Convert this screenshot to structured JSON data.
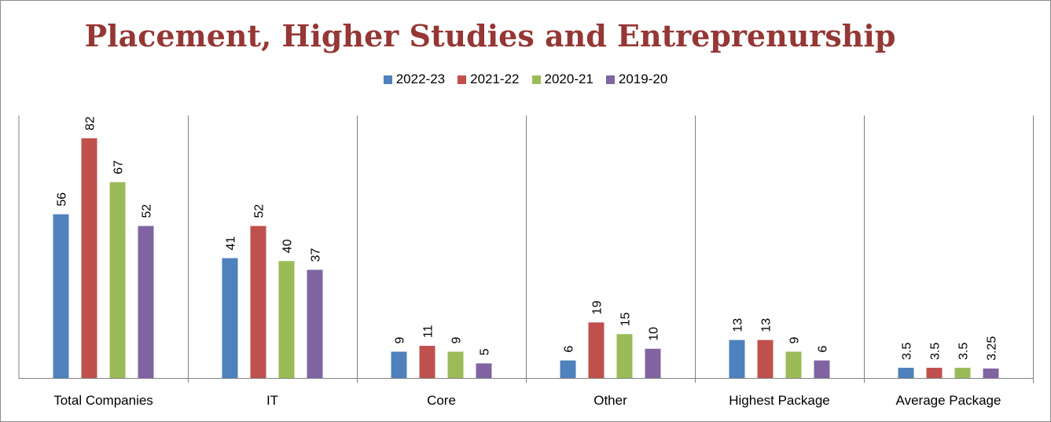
{
  "chart_data": {
    "type": "bar",
    "title": "Placement, Higher Studies and Entreprenurship",
    "categories": [
      "Total Companies",
      "IT",
      "Core",
      "Other",
      "Highest Package",
      "Average Package"
    ],
    "series": [
      {
        "name": "2022-23",
        "color": "#4f81bd",
        "values": [
          56,
          41,
          9,
          6,
          13,
          3.5
        ],
        "labels": [
          "56",
          "41",
          "9",
          "6",
          "13",
          "3.5"
        ]
      },
      {
        "name": "2021-22",
        "color": "#c0504d",
        "values": [
          82,
          52,
          11,
          19,
          13,
          3.5
        ],
        "labels": [
          "82",
          "52",
          "11",
          "19",
          "13",
          "3.5"
        ]
      },
      {
        "name": "2020-21",
        "color": "#9bbb59",
        "values": [
          67,
          40,
          9,
          15,
          9,
          3.5
        ],
        "labels": [
          "67",
          "40",
          "9",
          "15",
          "9",
          "3.5"
        ]
      },
      {
        "name": "2019-20",
        "color": "#8064a2",
        "values": [
          52,
          37,
          5,
          10,
          6,
          3.25
        ],
        "labels": [
          "52",
          "37",
          "5",
          "10",
          "6",
          "3.25"
        ]
      }
    ],
    "xlabel": "",
    "ylabel": "",
    "ylim": [
      0,
      90
    ],
    "grid": false,
    "vertical_category_separators": true,
    "legend": "top-center"
  }
}
